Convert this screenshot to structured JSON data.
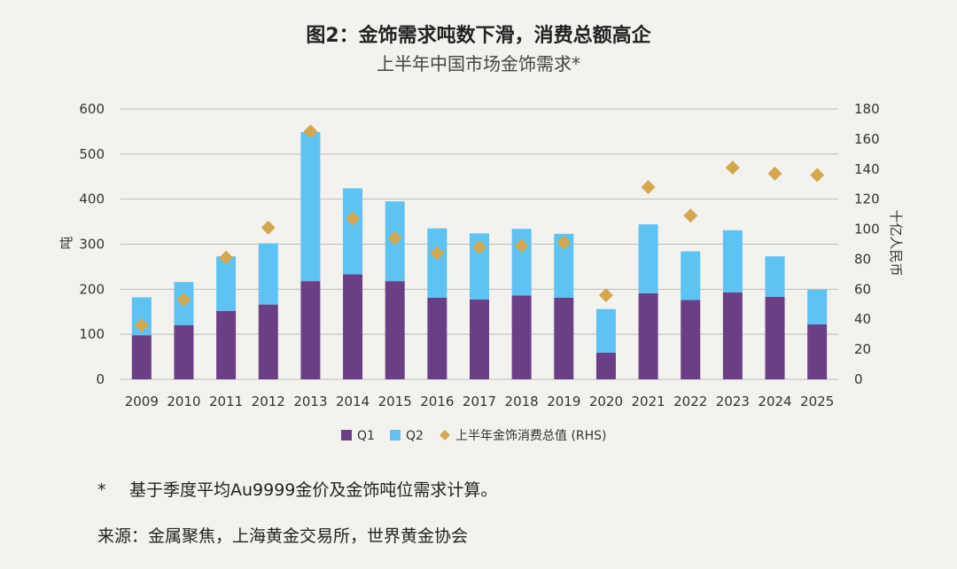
{
  "colors": {
    "q1": "#6b3f86",
    "q2": "#5ec2f2",
    "total": "#d4a84e",
    "grid": "#bdbdbd",
    "text": "#333333"
  },
  "chart_data": {
    "type": "bar",
    "title": "图2：金饰需求吨数下滑，消费总额高企",
    "subtitle": "上半年中国市场金饰需求*",
    "ylabel": "吨",
    "y2label": "十亿人民币",
    "ylim": [
      0,
      600
    ],
    "y2lim": [
      0,
      180
    ],
    "yticks": [
      0,
      100,
      200,
      300,
      400,
      500,
      600
    ],
    "y2ticks": [
      0,
      20,
      40,
      60,
      80,
      100,
      120,
      140,
      160,
      180
    ],
    "categories": [
      "2009",
      "2010",
      "2011",
      "2012",
      "2013",
      "2014",
      "2015",
      "2016",
      "2017",
      "2018",
      "2019",
      "2020",
      "2021",
      "2022",
      "2023",
      "2024",
      "2025"
    ],
    "series": [
      {
        "name": "Q1",
        "type": "bar",
        "stack": true,
        "values": [
          98,
          120,
          152,
          166,
          218,
          233,
          218,
          181,
          177,
          186,
          181,
          59,
          191,
          176,
          193,
          183,
          122
        ]
      },
      {
        "name": "Q2",
        "type": "bar",
        "stack": true,
        "values": [
          84,
          96,
          121,
          136,
          331,
          191,
          177,
          154,
          147,
          148,
          142,
          97,
          153,
          108,
          138,
          90,
          77
        ]
      },
      {
        "name": "上半年金饰消费总值 (RHS)",
        "type": "scatter",
        "axis": "right",
        "values": [
          36,
          53,
          81,
          101,
          165,
          107,
          94,
          84,
          88,
          89,
          91,
          56,
          128,
          109,
          141,
          137,
          136
        ]
      }
    ]
  },
  "footnote": {
    "marker": "*",
    "text": "基于季度平均Au9999金价及金饰吨位需求计算。"
  },
  "source": "来源：金属聚焦，上海黄金交易所，世界黄金协会"
}
